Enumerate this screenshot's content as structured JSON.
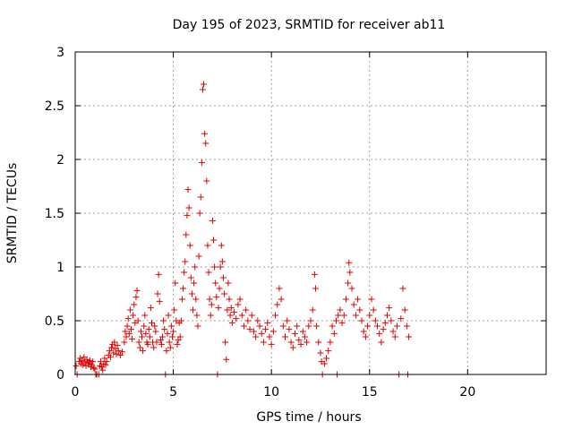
{
  "chart_data": {
    "type": "scatter",
    "title": "Day 195 of 2023, SRMTID for receiver ab11",
    "xlabel": "GPS time / hours",
    "ylabel": "SRMTID / TECUs",
    "xlim": [
      0,
      24
    ],
    "ylim": [
      0,
      3
    ],
    "xticks": [
      0,
      5,
      10,
      15,
      20
    ],
    "yticks": [
      0,
      0.5,
      1,
      1.5,
      2,
      2.5,
      3
    ],
    "ytick_labels": [
      "0",
      "0.5",
      "1",
      "1.5",
      "2",
      "2.5",
      "3"
    ],
    "grid": true,
    "marker": "+",
    "color": "#e00000",
    "series": [
      {
        "name": "SRMTID",
        "points": [
          [
            0.05,
            0.08
          ],
          [
            0.1,
            0.0
          ],
          [
            0.2,
            0.12
          ],
          [
            0.25,
            0.15
          ],
          [
            0.3,
            0.1
          ],
          [
            0.35,
            0.13
          ],
          [
            0.4,
            0.09
          ],
          [
            0.45,
            0.16
          ],
          [
            0.5,
            0.12
          ],
          [
            0.55,
            0.08
          ],
          [
            0.6,
            0.14
          ],
          [
            0.65,
            0.11
          ],
          [
            0.7,
            0.1
          ],
          [
            0.75,
            0.13
          ],
          [
            0.8,
            0.07
          ],
          [
            0.85,
            0.09
          ],
          [
            0.9,
            0.12
          ],
          [
            0.95,
            0.06
          ],
          [
            1.0,
            0.05
          ],
          [
            1.05,
            0.0
          ],
          [
            1.1,
            0.0
          ],
          [
            1.2,
            0.0
          ],
          [
            1.25,
            0.08
          ],
          [
            1.3,
            0.12
          ],
          [
            1.35,
            0.07
          ],
          [
            1.4,
            0.04
          ],
          [
            1.45,
            0.1
          ],
          [
            1.5,
            0.15
          ],
          [
            1.55,
            0.09
          ],
          [
            1.6,
            0.12
          ],
          [
            1.7,
            0.18
          ],
          [
            1.75,
            0.22
          ],
          [
            1.8,
            0.16
          ],
          [
            1.85,
            0.25
          ],
          [
            1.9,
            0.28
          ],
          [
            1.95,
            0.2
          ],
          [
            2.0,
            0.3
          ],
          [
            2.05,
            0.24
          ],
          [
            2.1,
            0.19
          ],
          [
            2.15,
            0.27
          ],
          [
            2.2,
            0.22
          ],
          [
            2.3,
            0.18
          ],
          [
            2.4,
            0.21
          ],
          [
            2.5,
            0.3
          ],
          [
            2.55,
            0.4
          ],
          [
            2.6,
            0.35
          ],
          [
            2.65,
            0.45
          ],
          [
            2.7,
            0.52
          ],
          [
            2.75,
            0.38
          ],
          [
            2.8,
            0.6
          ],
          [
            2.85,
            0.42
          ],
          [
            2.9,
            0.33
          ],
          [
            2.95,
            0.55
          ],
          [
            3.0,
            0.65
          ],
          [
            3.05,
            0.48
          ],
          [
            3.1,
            0.72
          ],
          [
            3.15,
            0.78
          ],
          [
            3.2,
            0.5
          ],
          [
            3.25,
            0.3
          ],
          [
            3.3,
            0.25
          ],
          [
            3.35,
            0.4
          ],
          [
            3.4,
            0.35
          ],
          [
            3.45,
            0.22
          ],
          [
            3.5,
            0.45
          ],
          [
            3.55,
            0.55
          ],
          [
            3.6,
            0.38
          ],
          [
            3.65,
            0.3
          ],
          [
            3.7,
            0.28
          ],
          [
            3.75,
            0.42
          ],
          [
            3.8,
            0.35
          ],
          [
            3.85,
            0.62
          ],
          [
            3.9,
            0.48
          ],
          [
            3.95,
            0.3
          ],
          [
            4.0,
            0.25
          ],
          [
            4.05,
            0.45
          ],
          [
            4.1,
            0.4
          ],
          [
            4.15,
            0.3
          ],
          [
            4.2,
            0.75
          ],
          [
            4.25,
            0.93
          ],
          [
            4.3,
            0.68
          ],
          [
            4.35,
            0.32
          ],
          [
            4.4,
            0.28
          ],
          [
            4.45,
            0.35
          ],
          [
            4.5,
            0.5
          ],
          [
            4.55,
            0.42
          ],
          [
            4.6,
            0.0
          ],
          [
            4.65,
            0.22
          ],
          [
            4.7,
            0.38
          ],
          [
            4.75,
            0.55
          ],
          [
            4.8,
            0.3
          ],
          [
            4.85,
            0.25
          ],
          [
            4.9,
            0.45
          ],
          [
            4.95,
            0.35
          ],
          [
            5.0,
            0.4
          ],
          [
            5.05,
            0.6
          ],
          [
            5.1,
            0.85
          ],
          [
            5.15,
            0.5
          ],
          [
            5.2,
            0.28
          ],
          [
            5.25,
            0.32
          ],
          [
            5.3,
            0.48
          ],
          [
            5.35,
            0.35
          ],
          [
            5.4,
            0.5
          ],
          [
            5.45,
            0.7
          ],
          [
            5.5,
            0.8
          ],
          [
            5.55,
            0.95
          ],
          [
            5.6,
            1.05
          ],
          [
            5.65,
            1.3
          ],
          [
            5.7,
            1.48
          ],
          [
            5.75,
            1.72
          ],
          [
            5.8,
            1.55
          ],
          [
            5.85,
            1.2
          ],
          [
            5.9,
            0.9
          ],
          [
            5.95,
            0.75
          ],
          [
            6.0,
            0.6
          ],
          [
            6.05,
            0.85
          ],
          [
            6.1,
            1.0
          ],
          [
            6.15,
            0.7
          ],
          [
            6.2,
            0.55
          ],
          [
            6.25,
            0.45
          ],
          [
            6.3,
            1.1
          ],
          [
            6.35,
            1.5
          ],
          [
            6.4,
            1.65
          ],
          [
            6.45,
            1.97
          ],
          [
            6.5,
            2.65
          ],
          [
            6.55,
            2.7
          ],
          [
            6.6,
            2.24
          ],
          [
            6.65,
            2.15
          ],
          [
            6.7,
            1.8
          ],
          [
            6.75,
            1.2
          ],
          [
            6.8,
            0.95
          ],
          [
            6.85,
            0.7
          ],
          [
            6.9,
            0.55
          ],
          [
            6.95,
            0.65
          ],
          [
            7.0,
            1.43
          ],
          [
            7.05,
            1.25
          ],
          [
            7.1,
            1.0
          ],
          [
            7.15,
            0.85
          ],
          [
            7.2,
            0.72
          ],
          [
            7.25,
            0.0
          ],
          [
            7.3,
            0.62
          ],
          [
            7.35,
            0.8
          ],
          [
            7.4,
            1.0
          ],
          [
            7.45,
            1.2
          ],
          [
            7.5,
            1.05
          ],
          [
            7.55,
            0.9
          ],
          [
            7.6,
            0.75
          ],
          [
            7.65,
            0.3
          ],
          [
            7.7,
            0.14
          ],
          [
            7.75,
            0.6
          ],
          [
            7.8,
            0.85
          ],
          [
            7.85,
            0.7
          ],
          [
            7.9,
            0.55
          ],
          [
            7.95,
            0.62
          ],
          [
            8.0,
            0.48
          ],
          [
            8.1,
            0.58
          ],
          [
            8.2,
            0.52
          ],
          [
            8.3,
            0.65
          ],
          [
            8.4,
            0.7
          ],
          [
            8.5,
            0.55
          ],
          [
            8.6,
            0.45
          ],
          [
            8.7,
            0.6
          ],
          [
            8.8,
            0.5
          ],
          [
            8.9,
            0.42
          ],
          [
            9.0,
            0.55
          ],
          [
            9.1,
            0.4
          ],
          [
            9.2,
            0.35
          ],
          [
            9.3,
            0.5
          ],
          [
            9.4,
            0.45
          ],
          [
            9.5,
            0.38
          ],
          [
            9.6,
            0.3
          ],
          [
            9.7,
            0.42
          ],
          [
            9.8,
            0.48
          ],
          [
            9.9,
            0.35
          ],
          [
            10.0,
            0.28
          ],
          [
            10.1,
            0.4
          ],
          [
            10.2,
            0.55
          ],
          [
            10.3,
            0.65
          ],
          [
            10.4,
            0.8
          ],
          [
            10.5,
            0.7
          ],
          [
            10.6,
            0.45
          ],
          [
            10.7,
            0.35
          ],
          [
            10.8,
            0.5
          ],
          [
            10.9,
            0.42
          ],
          [
            11.0,
            0.3
          ],
          [
            11.1,
            0.25
          ],
          [
            11.2,
            0.38
          ],
          [
            11.3,
            0.45
          ],
          [
            11.4,
            0.32
          ],
          [
            11.5,
            0.28
          ],
          [
            11.6,
            0.4
          ],
          [
            11.7,
            0.35
          ],
          [
            11.8,
            0.3
          ],
          [
            11.9,
            0.45
          ],
          [
            12.0,
            0.5
          ],
          [
            12.1,
            0.6
          ],
          [
            12.2,
            0.93
          ],
          [
            12.25,
            0.8
          ],
          [
            12.3,
            0.45
          ],
          [
            12.4,
            0.3
          ],
          [
            12.5,
            0.2
          ],
          [
            12.55,
            0.12
          ],
          [
            12.6,
            0.0
          ],
          [
            12.7,
            0.1
          ],
          [
            12.8,
            0.15
          ],
          [
            12.9,
            0.22
          ],
          [
            13.0,
            0.3
          ],
          [
            13.1,
            0.45
          ],
          [
            13.2,
            0.38
          ],
          [
            13.3,
            0.5
          ],
          [
            13.35,
            0.0
          ],
          [
            13.4,
            0.55
          ],
          [
            13.5,
            0.6
          ],
          [
            13.6,
            0.48
          ],
          [
            13.7,
            0.55
          ],
          [
            13.8,
            0.7
          ],
          [
            13.9,
            0.85
          ],
          [
            13.95,
            1.04
          ],
          [
            14.0,
            0.95
          ],
          [
            14.1,
            0.8
          ],
          [
            14.2,
            0.65
          ],
          [
            14.3,
            0.55
          ],
          [
            14.4,
            0.7
          ],
          [
            14.5,
            0.6
          ],
          [
            14.6,
            0.5
          ],
          [
            14.7,
            0.4
          ],
          [
            14.8,
            0.35
          ],
          [
            14.9,
            0.45
          ],
          [
            15.0,
            0.55
          ],
          [
            15.1,
            0.7
          ],
          [
            15.2,
            0.6
          ],
          [
            15.3,
            0.5
          ],
          [
            15.4,
            0.45
          ],
          [
            15.5,
            0.38
          ],
          [
            15.6,
            0.3
          ],
          [
            15.7,
            0.42
          ],
          [
            15.8,
            0.48
          ],
          [
            15.9,
            0.55
          ],
          [
            16.0,
            0.62
          ],
          [
            16.1,
            0.5
          ],
          [
            16.2,
            0.4
          ],
          [
            16.3,
            0.35
          ],
          [
            16.4,
            0.45
          ],
          [
            16.5,
            0.0
          ],
          [
            16.6,
            0.52
          ],
          [
            16.7,
            0.8
          ],
          [
            16.8,
            0.6
          ],
          [
            16.9,
            0.45
          ],
          [
            16.95,
            0.0
          ],
          [
            17.0,
            0.35
          ]
        ]
      }
    ]
  }
}
